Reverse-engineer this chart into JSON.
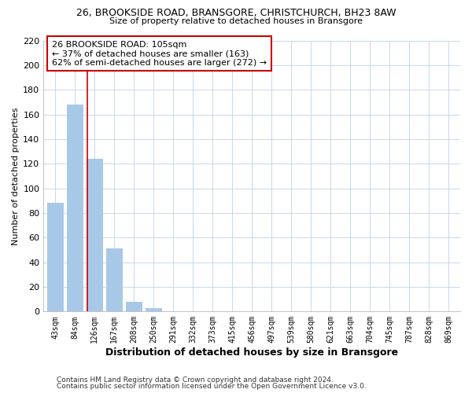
{
  "title_line1": "26, BROOKSIDE ROAD, BRANSGORE, CHRISTCHURCH, BH23 8AW",
  "title_line2": "Size of property relative to detached houses in Bransgore",
  "xlabel": "Distribution of detached houses by size in Bransgore",
  "ylabel": "Number of detached properties",
  "bar_labels": [
    "43sqm",
    "84sqm",
    "126sqm",
    "167sqm",
    "208sqm",
    "250sqm",
    "291sqm",
    "332sqm",
    "373sqm",
    "415sqm",
    "456sqm",
    "497sqm",
    "539sqm",
    "580sqm",
    "621sqm",
    "663sqm",
    "704sqm",
    "745sqm",
    "787sqm",
    "828sqm",
    "869sqm"
  ],
  "bar_values": [
    88,
    168,
    124,
    51,
    8,
    3,
    0,
    0,
    0,
    0,
    0,
    0,
    0,
    0,
    0,
    0,
    0,
    0,
    0,
    0,
    0
  ],
  "bar_color": "#a8c8e8",
  "vline_x": 1.62,
  "vline_color": "#cc0000",
  "annotation_title": "26 BROOKSIDE ROAD: 105sqm",
  "annotation_line2": "← 37% of detached houses are smaller (163)",
  "annotation_line3": "62% of semi-detached houses are larger (272) →",
  "annotation_box_color": "#ffffff",
  "annotation_box_edge": "#cc0000",
  "ylim": [
    0,
    220
  ],
  "yticks": [
    0,
    20,
    40,
    60,
    80,
    100,
    120,
    140,
    160,
    180,
    200,
    220
  ],
  "footer_line1": "Contains HM Land Registry data © Crown copyright and database right 2024.",
  "footer_line2": "Contains public sector information licensed under the Open Government Licence v3.0.",
  "bg_color": "#ffffff",
  "grid_color": "#c8d8ec"
}
